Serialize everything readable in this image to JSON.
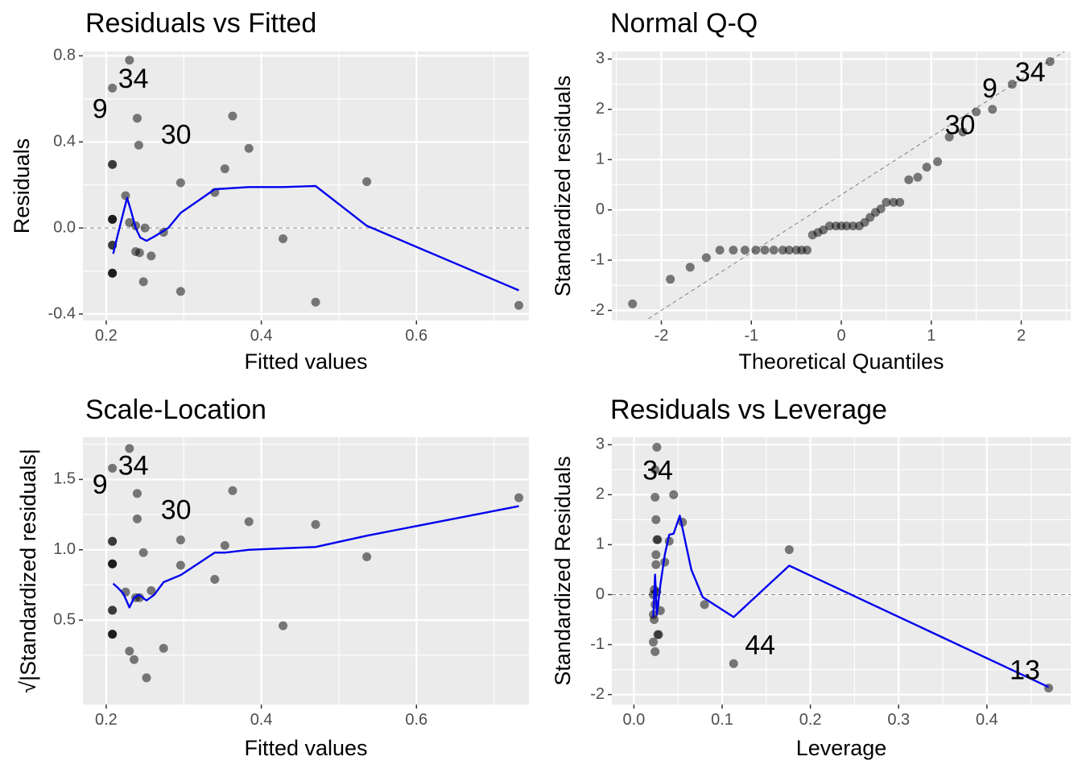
{
  "chart_data": [
    {
      "type": "scatter",
      "title": "Residuals vs Fitted",
      "xlabel": "Fitted values",
      "ylabel": "Residuals",
      "xlim": [
        0.17,
        0.745
      ],
      "ylim": [
        -0.43,
        0.82
      ],
      "xticks": [
        0.2,
        0.4,
        0.6
      ],
      "xtick_labels": [
        "0.2",
        "0.4",
        "0.6"
      ],
      "yticks": [
        -0.4,
        0.0,
        0.4,
        0.8
      ],
      "ytick_labels": [
        "-0.4",
        "0.0",
        "0.4",
        "0.8"
      ],
      "grid": true,
      "refline": {
        "orientation": "horizontal",
        "value": 0.0
      },
      "points": [
        [
          0.208,
          0.65
        ],
        [
          0.208,
          0.295
        ],
        [
          0.208,
          0.295
        ],
        [
          0.208,
          0.04
        ],
        [
          0.208,
          0.04
        ],
        [
          0.208,
          0.04
        ],
        [
          0.208,
          -0.08
        ],
        [
          0.208,
          -0.08
        ],
        [
          0.208,
          -0.21
        ],
        [
          0.208,
          -0.21
        ],
        [
          0.208,
          -0.21
        ],
        [
          0.23,
          0.78
        ],
        [
          0.24,
          0.51
        ],
        [
          0.242,
          0.385
        ],
        [
          0.225,
          0.15
        ],
        [
          0.23,
          0.025
        ],
        [
          0.238,
          0.01
        ],
        [
          0.25,
          0.0
        ],
        [
          0.238,
          -0.11
        ],
        [
          0.243,
          -0.115
        ],
        [
          0.248,
          -0.25
        ],
        [
          0.258,
          -0.13
        ],
        [
          0.274,
          -0.02
        ],
        [
          0.296,
          0.21
        ],
        [
          0.296,
          -0.295
        ],
        [
          0.34,
          0.165
        ],
        [
          0.353,
          0.275
        ],
        [
          0.363,
          0.52
        ],
        [
          0.384,
          0.37
        ],
        [
          0.428,
          -0.05
        ],
        [
          0.47,
          -0.345
        ],
        [
          0.536,
          0.215
        ],
        [
          0.732,
          -0.36
        ]
      ],
      "smooth": [
        [
          0.209,
          -0.12
        ],
        [
          0.215,
          -0.03
        ],
        [
          0.222,
          0.07
        ],
        [
          0.227,
          0.14
        ],
        [
          0.232,
          0.08
        ],
        [
          0.238,
          0.0
        ],
        [
          0.244,
          -0.045
        ],
        [
          0.252,
          -0.06
        ],
        [
          0.262,
          -0.04
        ],
        [
          0.28,
          0.0
        ],
        [
          0.296,
          0.07
        ],
        [
          0.34,
          0.18
        ],
        [
          0.384,
          0.19
        ],
        [
          0.428,
          0.19
        ],
        [
          0.47,
          0.195
        ],
        [
          0.536,
          0.01
        ],
        [
          0.732,
          -0.29
        ]
      ],
      "labels": [
        {
          "text": "34",
          "x": 0.235,
          "y": 0.685
        },
        {
          "text": "9",
          "x": 0.192,
          "y": 0.545
        },
        {
          "text": "30",
          "x": 0.29,
          "y": 0.425
        }
      ]
    },
    {
      "type": "scatter",
      "title": "Normal Q-Q",
      "xlabel": "Theoretical Quantiles",
      "ylabel": "Standardized residuals",
      "xlim": [
        -2.55,
        2.55
      ],
      "ylim": [
        -2.2,
        3.15
      ],
      "xticks": [
        -2,
        -1,
        0,
        1,
        2
      ],
      "xtick_labels": [
        "-2",
        "-1",
        "0",
        "1",
        "2"
      ],
      "yticks": [
        -2,
        -1,
        0,
        1,
        2,
        3
      ],
      "ytick_labels": [
        "-2",
        "-1",
        "0",
        "1",
        "2",
        "3"
      ],
      "grid": true,
      "refline": {
        "orientation": "diagonal",
        "slope": 1.15,
        "intercept": 0.3
      },
      "points": [
        [
          -2.32,
          -1.87
        ],
        [
          -1.9,
          -1.38
        ],
        [
          -1.68,
          -1.14
        ],
        [
          -1.5,
          -0.95
        ],
        [
          -1.35,
          -0.8
        ],
        [
          -1.2,
          -0.8
        ],
        [
          -1.07,
          -0.8
        ],
        [
          -0.95,
          -0.8
        ],
        [
          -0.85,
          -0.8
        ],
        [
          -0.75,
          -0.8
        ],
        [
          -0.65,
          -0.8
        ],
        [
          -0.58,
          -0.8
        ],
        [
          -0.5,
          -0.8
        ],
        [
          -0.44,
          -0.8
        ],
        [
          -0.38,
          -0.8
        ],
        [
          -0.32,
          -0.5
        ],
        [
          -0.26,
          -0.45
        ],
        [
          -0.2,
          -0.4
        ],
        [
          -0.13,
          -0.32
        ],
        [
          -0.06,
          -0.32
        ],
        [
          0.0,
          -0.32
        ],
        [
          0.06,
          -0.32
        ],
        [
          0.13,
          -0.32
        ],
        [
          0.2,
          -0.32
        ],
        [
          0.26,
          -0.25
        ],
        [
          0.32,
          -0.15
        ],
        [
          0.38,
          -0.05
        ],
        [
          0.44,
          0.02
        ],
        [
          0.5,
          0.15
        ],
        [
          0.58,
          0.15
        ],
        [
          0.65,
          0.15
        ],
        [
          0.75,
          0.6
        ],
        [
          0.85,
          0.65
        ],
        [
          0.95,
          0.85
        ],
        [
          1.07,
          0.96
        ],
        [
          1.2,
          1.45
        ],
        [
          1.35,
          1.55
        ],
        [
          1.5,
          1.95
        ],
        [
          1.68,
          2.0
        ],
        [
          1.9,
          2.5
        ],
        [
          2.32,
          2.95
        ]
      ],
      "labels": [
        {
          "text": "34",
          "x": 2.1,
          "y": 2.7
        },
        {
          "text": "9",
          "x": 1.65,
          "y": 2.38
        },
        {
          "text": "30",
          "x": 1.32,
          "y": 1.65
        }
      ]
    },
    {
      "type": "scatter",
      "title": "Scale-Location",
      "xlabel": "Fitted values",
      "ylabel": "√|Standardized residuals|",
      "xlim": [
        0.17,
        0.745
      ],
      "ylim": [
        -0.1,
        1.8
      ],
      "xticks": [
        0.2,
        0.4,
        0.6
      ],
      "xtick_labels": [
        "0.2",
        "0.4",
        "0.6"
      ],
      "yticks": [
        0.5,
        1.0,
        1.5
      ],
      "ytick_labels": [
        "0.5",
        "1.0",
        "1.5"
      ],
      "grid": true,
      "points": [
        [
          0.208,
          1.58
        ],
        [
          0.208,
          1.06
        ],
        [
          0.208,
          1.06
        ],
        [
          0.208,
          0.9
        ],
        [
          0.208,
          0.9
        ],
        [
          0.208,
          0.9
        ],
        [
          0.208,
          0.57
        ],
        [
          0.208,
          0.57
        ],
        [
          0.208,
          0.4
        ],
        [
          0.208,
          0.4
        ],
        [
          0.208,
          0.4
        ],
        [
          0.23,
          1.72
        ],
        [
          0.24,
          1.4
        ],
        [
          0.24,
          1.22
        ],
        [
          0.225,
          0.7
        ],
        [
          0.23,
          0.28
        ],
        [
          0.236,
          0.22
        ],
        [
          0.252,
          0.09
        ],
        [
          0.238,
          0.66
        ],
        [
          0.243,
          0.66
        ],
        [
          0.248,
          0.98
        ],
        [
          0.258,
          0.71
        ],
        [
          0.274,
          0.3
        ],
        [
          0.296,
          1.07
        ],
        [
          0.296,
          0.89
        ],
        [
          0.34,
          0.79
        ],
        [
          0.353,
          1.03
        ],
        [
          0.363,
          1.42
        ],
        [
          0.384,
          1.2
        ],
        [
          0.428,
          0.46
        ],
        [
          0.47,
          1.18
        ],
        [
          0.536,
          0.95
        ],
        [
          0.732,
          1.37
        ]
      ],
      "smooth": [
        [
          0.209,
          0.76
        ],
        [
          0.215,
          0.73
        ],
        [
          0.222,
          0.69
        ],
        [
          0.23,
          0.59
        ],
        [
          0.236,
          0.66
        ],
        [
          0.242,
          0.68
        ],
        [
          0.252,
          0.64
        ],
        [
          0.262,
          0.68
        ],
        [
          0.274,
          0.77
        ],
        [
          0.296,
          0.82
        ],
        [
          0.34,
          0.98
        ],
        [
          0.353,
          0.98
        ],
        [
          0.384,
          1.0
        ],
        [
          0.428,
          1.01
        ],
        [
          0.47,
          1.02
        ],
        [
          0.536,
          1.1
        ],
        [
          0.732,
          1.31
        ]
      ],
      "labels": [
        {
          "text": "34",
          "x": 0.235,
          "y": 1.585
        },
        {
          "text": "9",
          "x": 0.192,
          "y": 1.45
        },
        {
          "text": "30",
          "x": 0.29,
          "y": 1.27
        }
      ]
    },
    {
      "type": "scatter",
      "title": "Residuals vs Leverage",
      "xlabel": "Leverage",
      "ylabel": "Standardized Residuals",
      "xlim": [
        -0.025,
        0.495
      ],
      "ylim": [
        -2.2,
        3.15
      ],
      "xticks": [
        0.0,
        0.1,
        0.2,
        0.3,
        0.4
      ],
      "xtick_labels": [
        "0.0",
        "0.1",
        "0.2",
        "0.3",
        "0.4"
      ],
      "yticks": [
        -2,
        -1,
        0,
        1,
        2,
        3
      ],
      "ytick_labels": [
        "-2",
        "-1",
        "0",
        "1",
        "2",
        "3"
      ],
      "grid": true,
      "refline": {
        "orientation": "horizontal",
        "value": 0.0
      },
      "points": [
        [
          0.026,
          2.95
        ],
        [
          0.024,
          2.5
        ],
        [
          0.024,
          1.95
        ],
        [
          0.025,
          1.5
        ],
        [
          0.027,
          1.1
        ],
        [
          0.025,
          0.8
        ],
        [
          0.025,
          0.6
        ],
        [
          0.023,
          0.1
        ],
        [
          0.022,
          0.0
        ],
        [
          0.024,
          -0.2
        ],
        [
          0.022,
          -0.4
        ],
        [
          0.023,
          -0.5
        ],
        [
          0.027,
          -0.8
        ],
        [
          0.028,
          -0.8
        ],
        [
          0.022,
          -0.95
        ],
        [
          0.024,
          -1.14
        ],
        [
          0.026,
          1.1
        ],
        [
          0.026,
          0.05
        ],
        [
          0.03,
          -0.32
        ],
        [
          0.035,
          0.65
        ],
        [
          0.04,
          1.07
        ],
        [
          0.045,
          2.0
        ],
        [
          0.055,
          1.45
        ],
        [
          0.08,
          -0.2
        ],
        [
          0.113,
          -1.38
        ],
        [
          0.176,
          0.9
        ],
        [
          0.47,
          -1.87
        ]
      ],
      "smooth": [
        [
          0.022,
          -0.45
        ],
        [
          0.024,
          0.4
        ],
        [
          0.026,
          -0.4
        ],
        [
          0.03,
          0.2
        ],
        [
          0.035,
          0.8
        ],
        [
          0.04,
          1.2
        ],
        [
          0.045,
          1.22
        ],
        [
          0.052,
          1.58
        ],
        [
          0.065,
          0.5
        ],
        [
          0.078,
          -0.05
        ],
        [
          0.113,
          -0.45
        ],
        [
          0.176,
          0.58
        ],
        [
          0.47,
          -1.85
        ]
      ],
      "labels": [
        {
          "text": "34",
          "x": 0.027,
          "y": 2.45
        },
        {
          "text": "44",
          "x": 0.143,
          "y": -1.05
        },
        {
          "text": "13",
          "x": 0.443,
          "y": -1.55
        }
      ]
    }
  ]
}
